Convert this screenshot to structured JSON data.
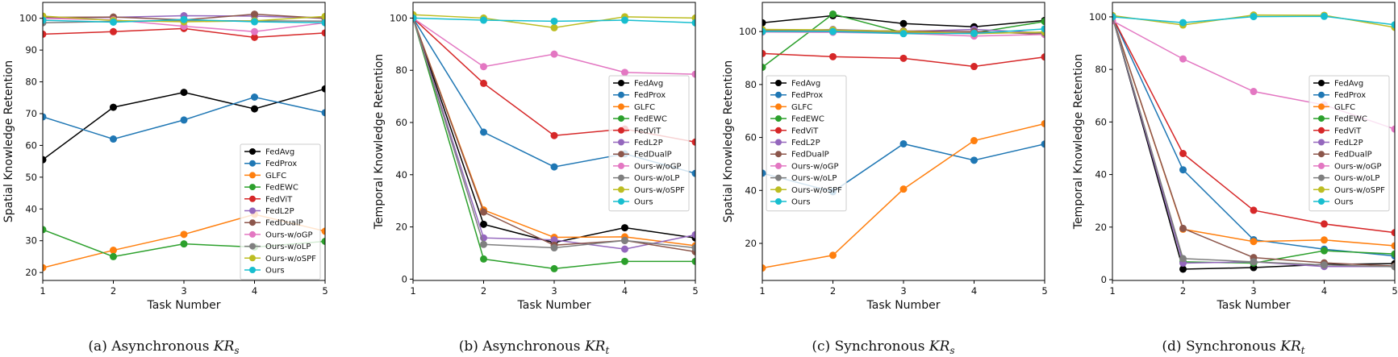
{
  "chart_data": [
    {
      "type": "line",
      "caption": {
        "prefix": "(a)",
        "text": "Asynchronous",
        "math": "KR",
        "sub": "s"
      },
      "xlabel": "Task Number",
      "ylabel": "Spatial Knowledge Retention",
      "x": [
        1,
        2,
        3,
        4,
        5
      ],
      "xlim": [
        1,
        5
      ],
      "ylim": [
        17.5,
        105
      ],
      "yticks": [
        20,
        30,
        40,
        50,
        60,
        70,
        80,
        90,
        100
      ],
      "grid": false,
      "legend_position": "lower-right",
      "series": [
        {
          "name": "FedAvg",
          "color": "#000000",
          "values": [
            55.5,
            72,
            76.7,
            71.5,
            77.8
          ]
        },
        {
          "name": "FedProx",
          "color": "#1f77b4",
          "values": [
            69,
            62,
            68,
            75.2,
            70.3
          ]
        },
        {
          "name": "GLFC",
          "color": "#ff7f0e",
          "values": [
            21.5,
            27,
            32,
            38.3,
            33
          ]
        },
        {
          "name": "FedEWC",
          "color": "#2ca02c",
          "values": [
            33.5,
            25,
            29,
            28,
            29.8
          ]
        },
        {
          "name": "FedViT",
          "color": "#d62728",
          "values": [
            95,
            95.8,
            96.8,
            94,
            95.4
          ]
        },
        {
          "name": "FedL2P",
          "color": "#9467bd",
          "values": [
            100,
            100.3,
            100.8,
            100.7,
            100
          ]
        },
        {
          "name": "FedDualP",
          "color": "#8c564b",
          "values": [
            100.3,
            100.4,
            99.5,
            101.3,
            100
          ]
        },
        {
          "name": "Ours-w/oGP",
          "color": "#e377c2",
          "values": [
            100,
            99.5,
            97.5,
            95.8,
            98.6
          ]
        },
        {
          "name": "Ours-w/oLP",
          "color": "#7f7f7f",
          "values": [
            98.6,
            99,
            99.3,
            99.2,
            99.1
          ]
        },
        {
          "name": "Ours-w/oSPF",
          "color": "#bcbd22",
          "values": [
            100.7,
            99.3,
            98.9,
            99.2,
            100.6
          ]
        },
        {
          "name": "Ours",
          "color": "#17becf",
          "values": [
            99.4,
            98.8,
            99.6,
            98.9,
            98.6
          ]
        }
      ]
    },
    {
      "type": "line",
      "caption": {
        "prefix": "(b)",
        "text": "Asynchronous",
        "math": "KR",
        "sub": "t"
      },
      "xlabel": "Task Number",
      "ylabel": "Temporal Knowledge Retention",
      "x": [
        1,
        2,
        3,
        4,
        5
      ],
      "xlim": [
        1,
        5
      ],
      "ylim": [
        -0.5,
        106
      ],
      "yticks": [
        0,
        20,
        40,
        60,
        80,
        100
      ],
      "grid": false,
      "legend_position": "center-right",
      "series": [
        {
          "name": "FedAvg",
          "color": "#000000",
          "values": [
            100,
            21,
            14,
            19.7,
            15.8
          ]
        },
        {
          "name": "FedProx",
          "color": "#1f77b4",
          "values": [
            100,
            56.3,
            43,
            48,
            40.5
          ]
        },
        {
          "name": "GLFC",
          "color": "#ff7f0e",
          "values": [
            100,
            26.5,
            16,
            16.2,
            12.8
          ]
        },
        {
          "name": "FedEWC",
          "color": "#2ca02c",
          "values": [
            100,
            7.7,
            4,
            6.8,
            6.8
          ]
        },
        {
          "name": "FedViT",
          "color": "#d62728",
          "values": [
            100,
            75,
            55,
            57.5,
            52.5
          ]
        },
        {
          "name": "FedL2P",
          "color": "#9467bd",
          "values": [
            100,
            15.8,
            15,
            11.5,
            17
          ]
        },
        {
          "name": "FedDualP",
          "color": "#8c564b",
          "values": [
            100,
            25.7,
            13,
            14.8,
            10.5
          ]
        },
        {
          "name": "Ours-w/oGP",
          "color": "#e377c2",
          "values": [
            100,
            81.4,
            86.2,
            79.2,
            78.5
          ]
        },
        {
          "name": "Ours-w/oLP",
          "color": "#7f7f7f",
          "values": [
            100,
            13.3,
            12,
            14.8,
            12
          ]
        },
        {
          "name": "Ours-w/oSPF",
          "color": "#bcbd22",
          "values": [
            101.3,
            100,
            96.3,
            100.5,
            100
          ]
        },
        {
          "name": "Ours",
          "color": "#17becf",
          "values": [
            100,
            99.2,
            98.8,
            99.2,
            98.2
          ]
        }
      ]
    },
    {
      "type": "line",
      "caption": {
        "prefix": "(c)",
        "text": "Synchronous",
        "math": "KR",
        "sub": "s"
      },
      "xlabel": "Task Number",
      "ylabel": "Spatial Knowledge Retention",
      "x": [
        1,
        2,
        3,
        4,
        5
      ],
      "xlim": [
        1,
        5
      ],
      "ylim": [
        6,
        111
      ],
      "yticks": [
        20,
        40,
        60,
        80,
        100
      ],
      "grid": false,
      "legend_position": "center-left",
      "series": [
        {
          "name": "FedAvg",
          "color": "#000000",
          "values": [
            103.3,
            106,
            103,
            101.8,
            104.2
          ]
        },
        {
          "name": "FedProx",
          "color": "#1f77b4",
          "values": [
            46.5,
            39.5,
            57.6,
            51.4,
            57.5
          ]
        },
        {
          "name": "GLFC",
          "color": "#ff7f0e",
          "values": [
            10.7,
            15.5,
            40.5,
            58.8,
            65.2
          ]
        },
        {
          "name": "FedEWC",
          "color": "#2ca02c",
          "values": [
            86.5,
            106.6,
            99.5,
            99.5,
            103.8
          ]
        },
        {
          "name": "FedViT",
          "color": "#d62728",
          "values": [
            91.7,
            90.5,
            89.9,
            86.8,
            90.4
          ]
        },
        {
          "name": "FedL2P",
          "color": "#9467bd",
          "values": [
            100,
            100.8,
            100,
            100.8,
            99.5
          ]
        },
        {
          "name": "FedDualP",
          "color": "#8c564b",
          "values": [
            100.4,
            100.4,
            100.2,
            100,
            99
          ]
        },
        {
          "name": "Ours-w/oGP",
          "color": "#e377c2",
          "values": [
            99.8,
            99.7,
            99.3,
            98.3,
            98.9
          ]
        },
        {
          "name": "Ours-w/oLP",
          "color": "#7f7f7f",
          "values": [
            100.2,
            100.3,
            99.6,
            99.5,
            99.5
          ]
        },
        {
          "name": "Ours-w/oSPF",
          "color": "#bcbd22",
          "values": [
            100.8,
            100.6,
            100,
            99.2,
            99.8
          ]
        },
        {
          "name": "Ours",
          "color": "#17becf",
          "values": [
            100,
            100,
            99.2,
            99.3,
            101
          ]
        }
      ]
    },
    {
      "type": "line",
      "caption": {
        "prefix": "(d)",
        "text": "Synchronous",
        "math": "KR",
        "sub": "t"
      },
      "xlabel": "Task Number",
      "ylabel": "Temporal Knowledge Retention",
      "x": [
        1,
        2,
        3,
        4,
        5
      ],
      "xlim": [
        1,
        5
      ],
      "ylim": [
        -0.3,
        105.5
      ],
      "yticks": [
        0,
        20,
        40,
        60,
        80,
        100
      ],
      "grid": false,
      "legend_position": "center-right",
      "series": [
        {
          "name": "FedAvg",
          "color": "#000000",
          "values": [
            100,
            4,
            4.6,
            5.8,
            6.1
          ]
        },
        {
          "name": "FedProx",
          "color": "#1f77b4",
          "values": [
            100,
            41.8,
            15.2,
            11.6,
            9
          ]
        },
        {
          "name": "GLFC",
          "color": "#ff7f0e",
          "values": [
            100,
            19.2,
            14.5,
            15.1,
            12.9
          ]
        },
        {
          "name": "FedEWC",
          "color": "#2ca02c",
          "values": [
            100,
            6.8,
            6.3,
            11,
            9.8
          ]
        },
        {
          "name": "FedViT",
          "color": "#d62728",
          "values": [
            100,
            48,
            26.4,
            21.2,
            17.9
          ]
        },
        {
          "name": "FedL2P",
          "color": "#9467bd",
          "values": [
            100,
            6.3,
            6.8,
            5,
            5
          ]
        },
        {
          "name": "FedDualP",
          "color": "#8c564b",
          "values": [
            100,
            19.5,
            8.4,
            6.4,
            5.2
          ]
        },
        {
          "name": "Ours-w/oGP",
          "color": "#e377c2",
          "values": [
            98.5,
            84,
            71.6,
            66.5,
            57.3
          ]
        },
        {
          "name": "Ours-w/oLP",
          "color": "#7f7f7f",
          "values": [
            100,
            8,
            6.8,
            5.6,
            4.9
          ]
        },
        {
          "name": "Ours-w/oSPF",
          "color": "#bcbd22",
          "values": [
            100.5,
            96.9,
            100.7,
            100.6,
            96
          ]
        },
        {
          "name": "Ours",
          "color": "#17becf",
          "values": [
            100,
            97.8,
            100.1,
            100.2,
            97
          ]
        }
      ]
    }
  ]
}
